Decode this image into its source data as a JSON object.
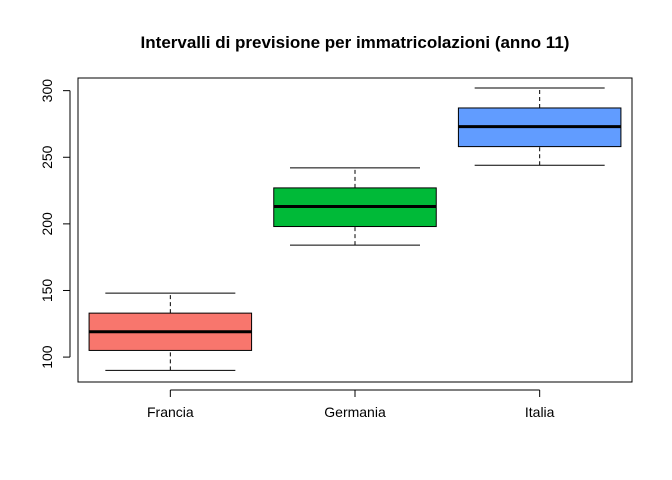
{
  "chart_data": {
    "type": "boxplot",
    "title": "Intervalli di previsione per immatricolazioni (anno 11)",
    "xlabel": "",
    "ylabel": "",
    "ylim": [
      81.3,
      309.5
    ],
    "yticks": [
      100,
      150,
      200,
      250,
      300
    ],
    "grid": false,
    "categories": [
      "Francia",
      "Germania",
      "Italia"
    ],
    "boxes": [
      {
        "category": "Francia",
        "whisker_low": 90,
        "q1": 105,
        "median": 119,
        "q3": 133,
        "whisker_high": 148,
        "color": "#f8766d"
      },
      {
        "category": "Germania",
        "whisker_low": 184,
        "q1": 198,
        "median": 213,
        "q3": 227,
        "whisker_high": 242,
        "color": "#00ba38"
      },
      {
        "category": "Italia",
        "whisker_low": 244,
        "q1": 258,
        "median": 273,
        "q3": 287,
        "whisker_high": 302,
        "color": "#619cff"
      }
    ]
  }
}
